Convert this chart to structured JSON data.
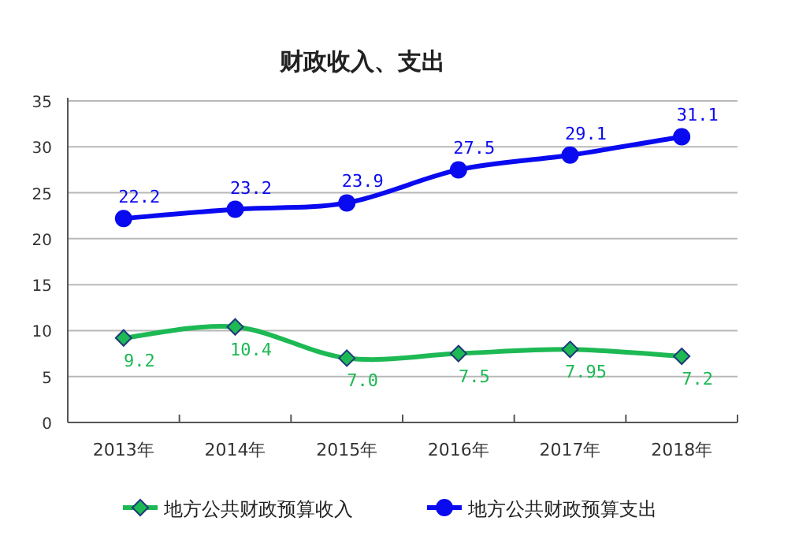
{
  "chart_data": {
    "type": "line",
    "title": "财政收入、支出",
    "categories": [
      "2013年",
      "2014年",
      "2015年",
      "2016年",
      "2017年",
      "2018年"
    ],
    "series": [
      {
        "name": "地方公共财政预算收入",
        "color": "#1db954",
        "marker": "diamond",
        "values": [
          9.2,
          10.4,
          7.0,
          7.5,
          7.95,
          7.2
        ],
        "value_labels": [
          "9.2",
          "10.4",
          "7.0",
          "7.5",
          "7.95",
          "7.2"
        ]
      },
      {
        "name": "地方公共财政预算支出",
        "color": "#0a0af0",
        "marker": "circle",
        "values": [
          22.2,
          23.2,
          23.9,
          27.5,
          29.1,
          31.1
        ]
      }
    ],
    "ylim": [
      0,
      35
    ],
    "yticks": [
      0,
      5,
      10,
      15,
      20,
      25,
      30,
      35
    ],
    "grid": "y",
    "legend": "bottom",
    "data_labels": true,
    "line_style": "solid"
  }
}
